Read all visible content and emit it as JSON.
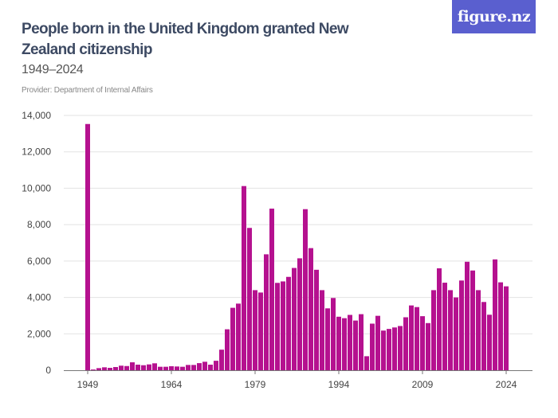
{
  "header": {
    "title": "People born in the United Kingdom granted New Zealand citizenship",
    "subtitle": "1949–2024",
    "provider": "Provider: Department of Internal Affairs",
    "logo": "figure.nz"
  },
  "colors": {
    "bar": "#b5118f",
    "logo_bg": "#5a5fcf",
    "grid": "#e2e2e2"
  },
  "chart_data": {
    "type": "bar",
    "title": "People born in the United Kingdom granted New Zealand citizenship",
    "xlabel": "",
    "ylabel": "",
    "ylim": [
      0,
      14000
    ],
    "y_ticks": [
      0,
      2000,
      4000,
      6000,
      8000,
      10000,
      12000,
      14000
    ],
    "y_tick_labels": [
      "0",
      "2,000",
      "4,000",
      "6,000",
      "8,000",
      "10,000",
      "12,000",
      "14,000"
    ],
    "x_tick_labels": [
      "1949",
      "1964",
      "1979",
      "1994",
      "2009",
      "2024"
    ],
    "grid": true,
    "categories": [
      1949,
      1950,
      1951,
      1952,
      1953,
      1954,
      1955,
      1956,
      1957,
      1958,
      1959,
      1960,
      1961,
      1962,
      1963,
      1964,
      1965,
      1966,
      1967,
      1968,
      1969,
      1970,
      1971,
      1972,
      1973,
      1974,
      1975,
      1976,
      1977,
      1978,
      1979,
      1980,
      1981,
      1982,
      1983,
      1984,
      1985,
      1986,
      1987,
      1988,
      1989,
      1990,
      1991,
      1992,
      1993,
      1994,
      1995,
      1996,
      1997,
      1998,
      1999,
      2000,
      2001,
      2002,
      2003,
      2004,
      2005,
      2006,
      2007,
      2008,
      2009,
      2010,
      2011,
      2012,
      2013,
      2014,
      2015,
      2016,
      2017,
      2018,
      2019,
      2020,
      2021,
      2022,
      2023,
      2024
    ],
    "values": [
      13530,
      40,
      115,
      160,
      130,
      175,
      250,
      230,
      435,
      305,
      275,
      320,
      380,
      190,
      190,
      220,
      205,
      190,
      290,
      290,
      390,
      465,
      305,
      520,
      1130,
      2250,
      3430,
      3660,
      10120,
      7820,
      4400,
      4270,
      6370,
      8880,
      4800,
      4880,
      5130,
      5620,
      6150,
      8850,
      6710,
      5520,
      4400,
      3400,
      3970,
      2940,
      2860,
      3040,
      2730,
      3080,
      770,
      2560,
      2990,
      2180,
      2270,
      2350,
      2430,
      2910,
      3560,
      3470,
      2970,
      2590,
      4400,
      5600,
      4810,
      4400,
      4000,
      4930,
      5960,
      5480,
      4400,
      3750,
      3050,
      6090,
      4830,
      4610
    ]
  }
}
